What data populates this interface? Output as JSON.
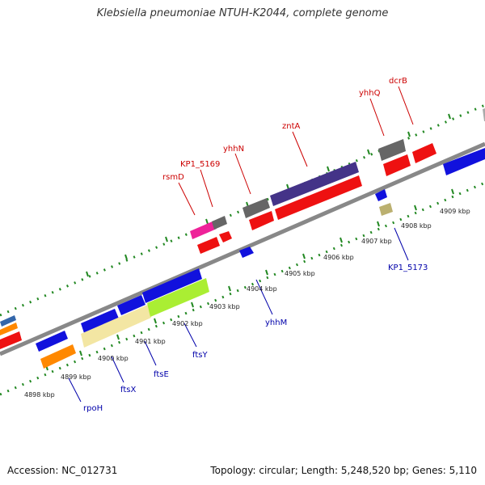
{
  "title": "Klebsiella pneumoniae NTUH-K2044, complete genome",
  "footer": {
    "accession": "Accession: NC_012731",
    "summary": "Topology: circular; Length: 5,248,520 bp; Genes: 5,110"
  },
  "scale_labels": [
    "4898 kbp",
    "4899 kbp",
    "4900 kbp",
    "4901 kbp",
    "4902 kbp",
    "4903 kbp",
    "4904 kbp",
    "4905 kbp",
    "4906 kbp",
    "4907 kbp",
    "4908 kbp",
    "4909 kbp"
  ],
  "gene_labels_top": [
    "rsmD",
    "KP1_5169",
    "yhhN",
    "zntA",
    "yhhQ",
    "dcrB"
  ],
  "gene_labels_bottom": [
    "rpoH",
    "ftsX",
    "ftsE",
    "ftsY",
    "yhhM",
    "KP1_5173"
  ],
  "colors": {
    "red": "#ee1111",
    "blue": "#1111dd",
    "gray": "#666666",
    "navy": "#443388",
    "pink": "#ee2299",
    "orange": "#ff8800",
    "cream": "#f3e6a3",
    "lime": "#aaee33",
    "khaki": "#bbb070",
    "backbone": "#888888",
    "tick": "#228822"
  }
}
